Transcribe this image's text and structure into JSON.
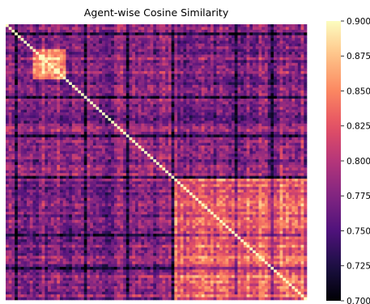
{
  "chart_data": {
    "type": "heatmap",
    "title": "Agent-wise Cosine Similarity",
    "xlabel": "",
    "ylabel": "",
    "n_agents": 100,
    "diagonal_value": 0.9,
    "colormap": "magma",
    "colorbar": {
      "vmin": 0.7,
      "vmax": 0.9,
      "ticks": [
        "0.700",
        "0.725",
        "0.750",
        "0.775",
        "0.800",
        "0.825",
        "0.850",
        "0.875",
        "0.900"
      ],
      "tick_values": [
        0.7,
        0.725,
        0.75,
        0.775,
        0.8,
        0.825,
        0.85,
        0.875,
        0.9
      ]
    },
    "axis_tick_labels": "none",
    "clusters": [
      {
        "from": 9,
        "to": 20,
        "mean": 0.86
      },
      {
        "from": 56,
        "to": 100,
        "mean": 0.835
      }
    ],
    "dark_agents": [
      3,
      26,
      40,
      55,
      76,
      88
    ],
    "values_note_visible": false
  }
}
